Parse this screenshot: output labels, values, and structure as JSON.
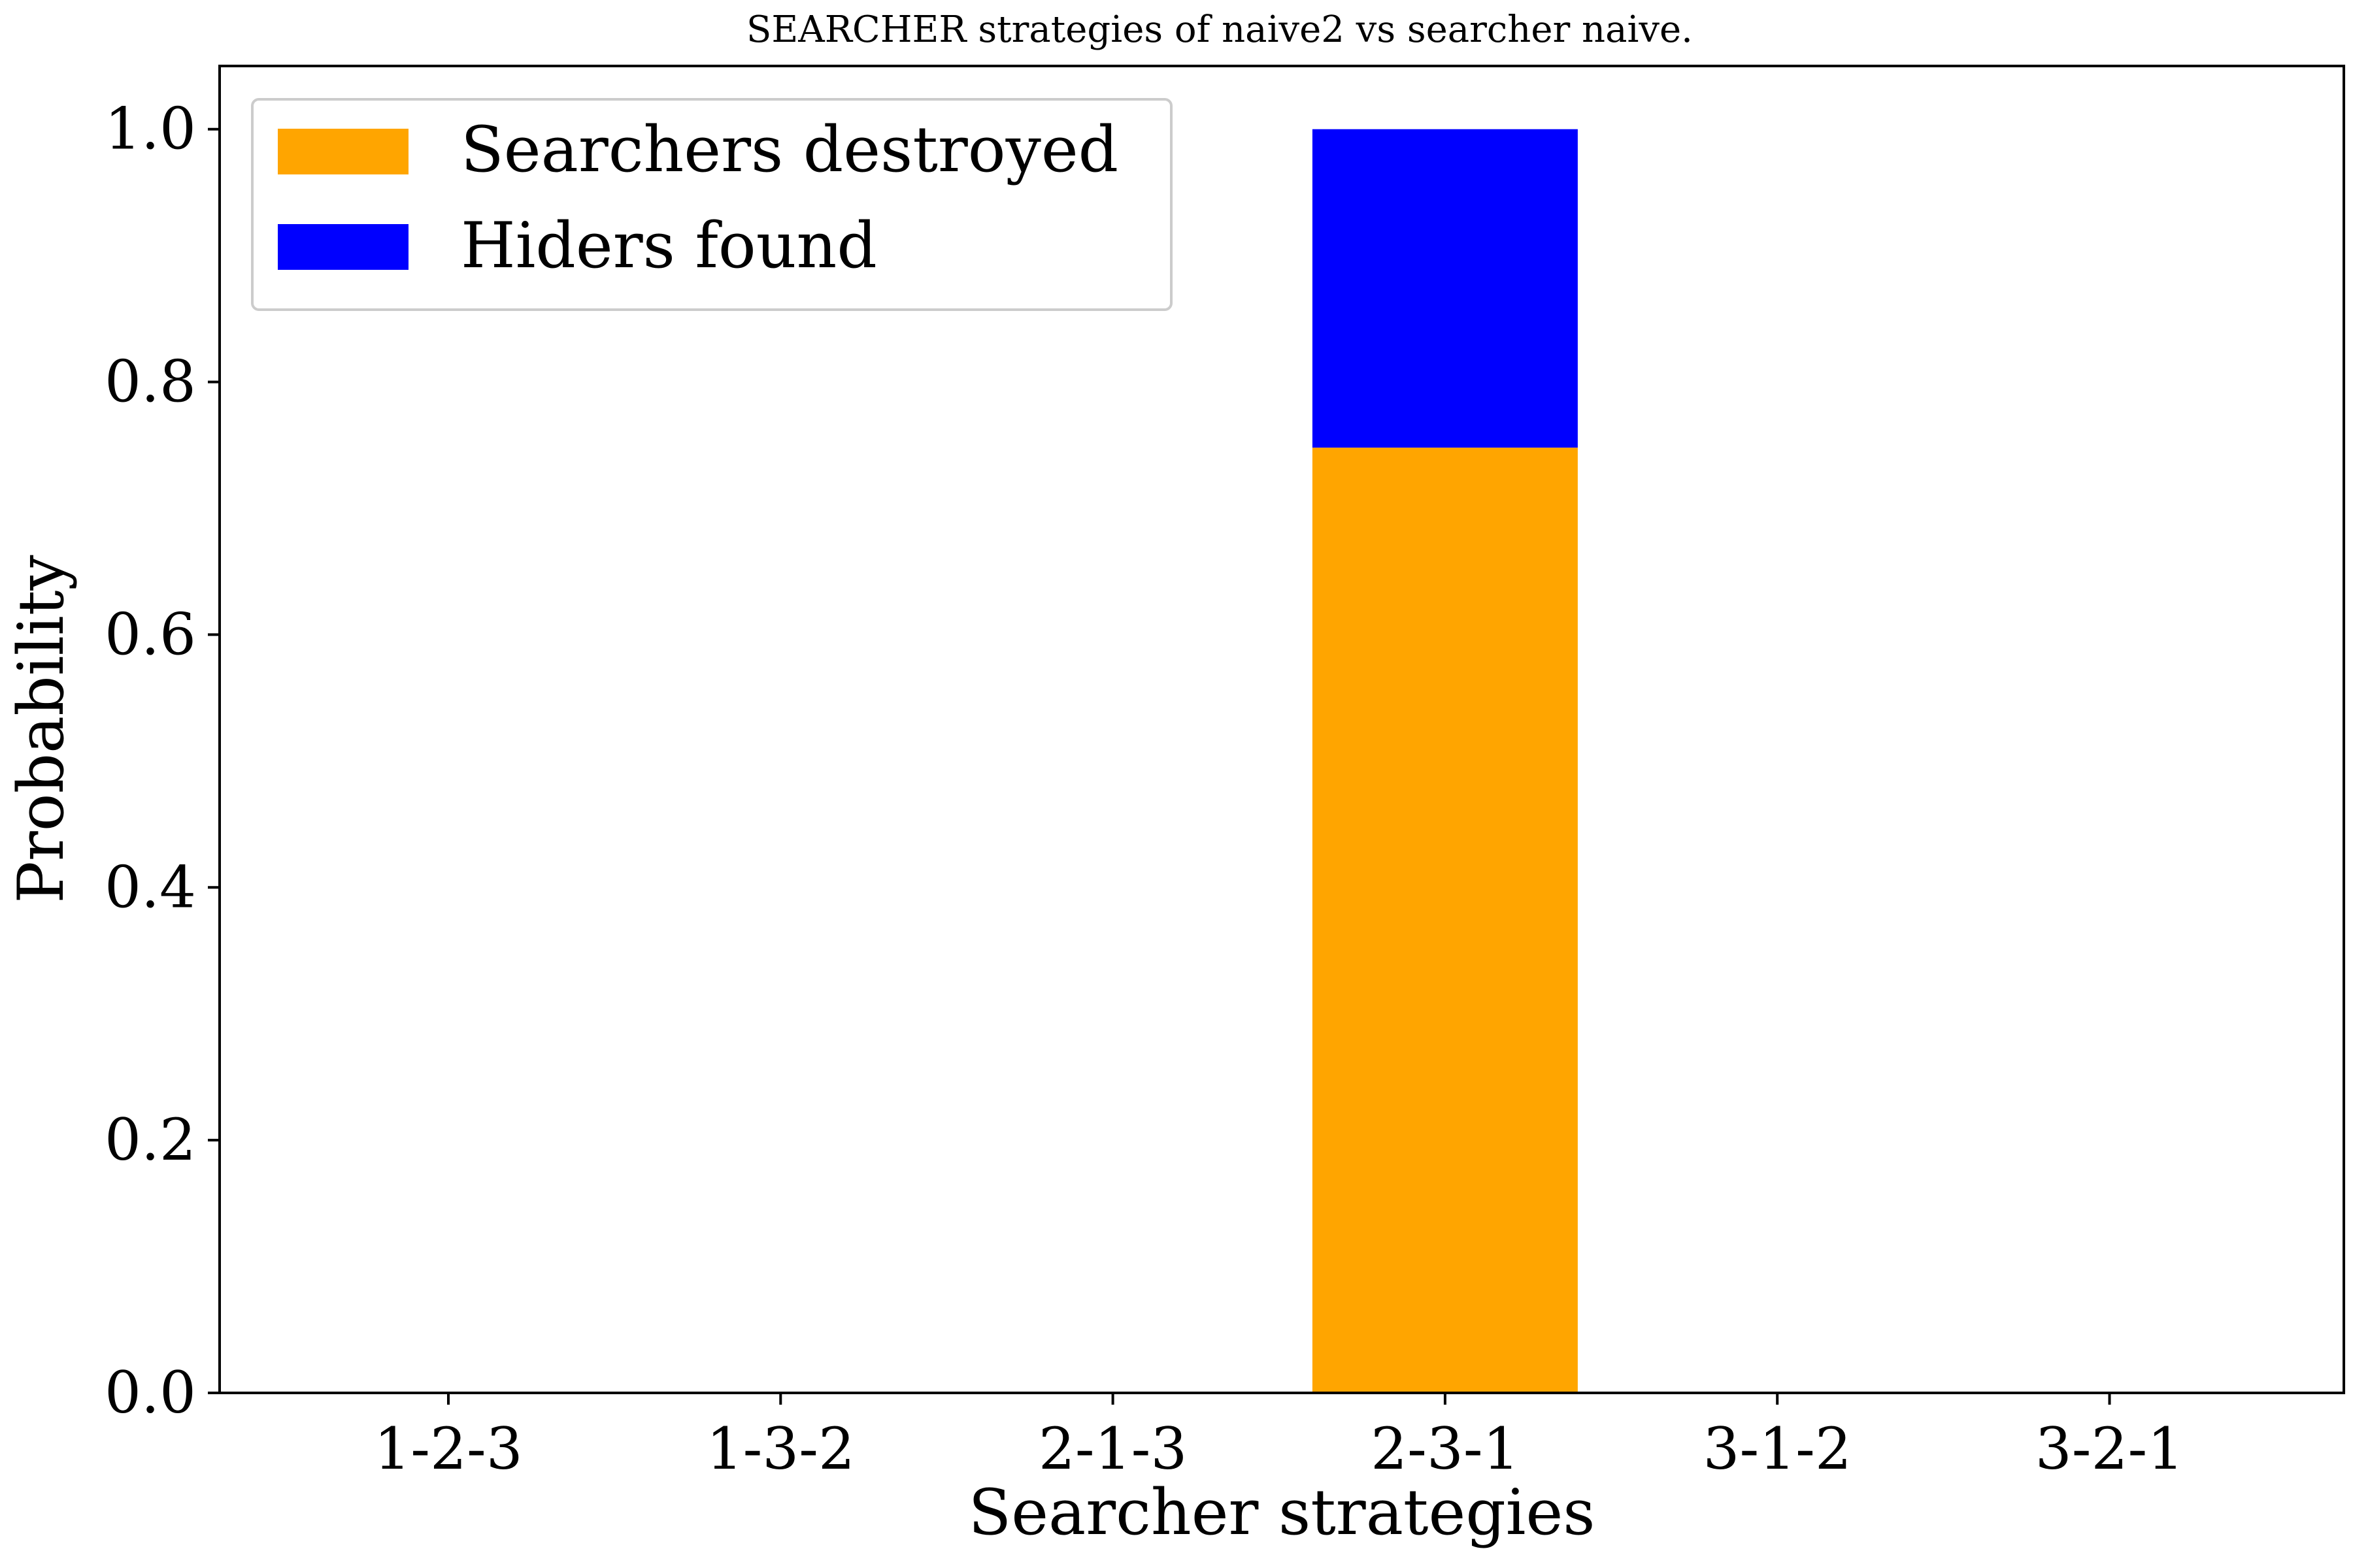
{
  "chart_data": {
    "type": "bar",
    "stacked": true,
    "title": "SEARCHER strategies of naive2 vs searcher naive.",
    "xlabel": "Searcher strategies",
    "ylabel": "Probability",
    "categories": [
      "1-2-3",
      "1-3-2",
      "2-1-3",
      "2-3-1",
      "3-1-2",
      "3-2-1"
    ],
    "series": [
      {
        "name": "Searchers destroyed",
        "color": "#ffa500",
        "values": [
          0,
          0,
          0,
          0.748,
          0,
          0
        ]
      },
      {
        "name": "Hiders found",
        "color": "#0000ff",
        "values": [
          0,
          0,
          0,
          0.252,
          0,
          0
        ]
      }
    ],
    "ylim": [
      0,
      1.05
    ],
    "yticks": [
      "0.0",
      "0.2",
      "0.4",
      "0.6",
      "0.8",
      "1.0"
    ],
    "grid": false,
    "legend_position": "top-left"
  }
}
